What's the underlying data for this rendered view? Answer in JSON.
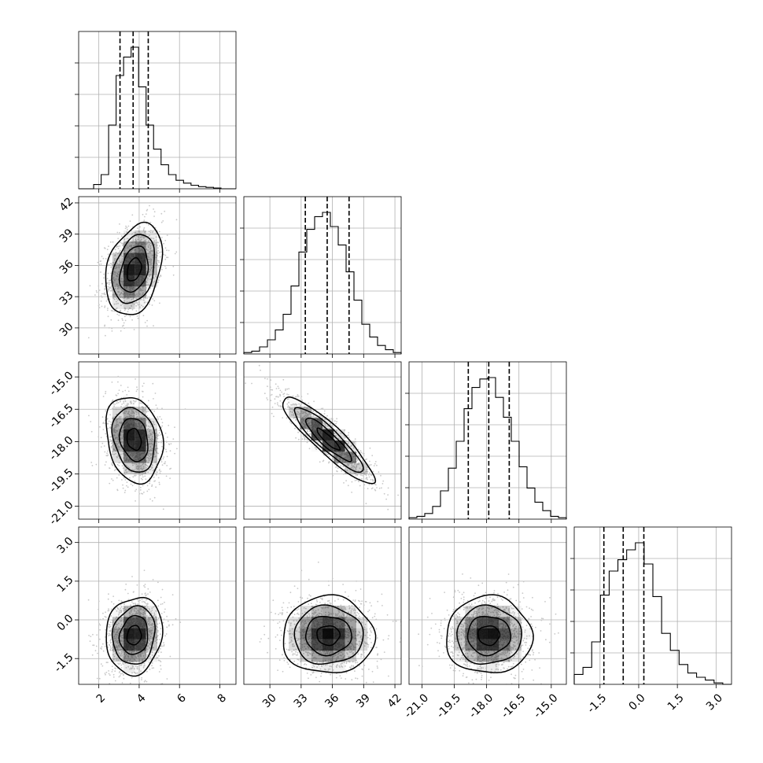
{
  "chart_data": {
    "type": "corner",
    "grid": true,
    "parameters": [
      {
        "range": [
          1.0,
          8.8
        ],
        "ticks": [
          "2",
          "4",
          "6",
          "8"
        ],
        "tick_values": [
          2,
          4,
          6,
          8
        ],
        "mean": 3.75,
        "sd": 0.7,
        "quantiles": [
          3.05,
          3.7,
          4.45
        ],
        "histogram": [
          0,
          0,
          0.03,
          0.1,
          0.45,
          0.8,
          0.93,
          1.0,
          0.72,
          0.45,
          0.28,
          0.17,
          0.1,
          0.06,
          0.04,
          0.025,
          0.015,
          0.01,
          0.005,
          0,
          0
        ]
      },
      {
        "range": [
          27.5,
          42.6
        ],
        "ticks": [
          "30",
          "33",
          "36",
          "39",
          "42"
        ],
        "tick_values": [
          30,
          33,
          36,
          39,
          42
        ],
        "mean": 35.6,
        "sd": 2.2,
        "quantiles": [
          33.4,
          35.5,
          37.6
        ],
        "histogram": [
          0.01,
          0.02,
          0.05,
          0.1,
          0.17,
          0.28,
          0.48,
          0.72,
          0.88,
          0.97,
          1.0,
          0.9,
          0.77,
          0.58,
          0.38,
          0.21,
          0.12,
          0.06,
          0.03,
          0.01
        ]
      },
      {
        "range": [
          -21.6,
          -14.3
        ],
        "ticks": [
          "-21.0",
          "-19.5",
          "-18.0",
          "-16.5",
          "-15.0"
        ],
        "tick_values": [
          -21.0,
          -19.5,
          -18.0,
          -16.5,
          -15.0
        ],
        "mean": -17.9,
        "sd": 1.0,
        "quantiles": [
          -18.85,
          -17.9,
          -16.95
        ],
        "histogram": [
          0.01,
          0.02,
          0.04,
          0.09,
          0.2,
          0.36,
          0.55,
          0.78,
          0.93,
          0.99,
          1.0,
          0.86,
          0.72,
          0.55,
          0.37,
          0.22,
          0.12,
          0.06,
          0.02,
          0.01
        ]
      },
      {
        "range": [
          -2.5,
          3.6
        ],
        "ticks": [
          "-1.5",
          "0.0",
          "1.5",
          "3.0"
        ],
        "tick_values": [
          -1.5,
          0.0,
          1.5,
          3.0
        ],
        "mean": -0.6,
        "sd": 0.75,
        "quantiles": [
          -1.35,
          -0.6,
          0.2
        ],
        "histogram": [
          0.07,
          0.12,
          0.3,
          0.63,
          0.8,
          0.88,
          0.95,
          1.0,
          0.85,
          0.62,
          0.36,
          0.24,
          0.14,
          0.08,
          0.05,
          0.03,
          0.01,
          0
        ]
      }
    ],
    "correlations": [
      [
        1,
        0.3,
        -0.2,
        0.1
      ],
      [
        0.3,
        1,
        -0.9,
        0.0
      ],
      [
        -0.2,
        -0.9,
        1,
        0.0
      ],
      [
        0.1,
        0.0,
        0.0,
        1
      ]
    ],
    "contour_levels_sigma": [
      0.5,
      1.0,
      1.5,
      2.0
    ],
    "contour_color": "#000000",
    "scatter_color": "#c8c8c8",
    "density_color": "#000000"
  }
}
